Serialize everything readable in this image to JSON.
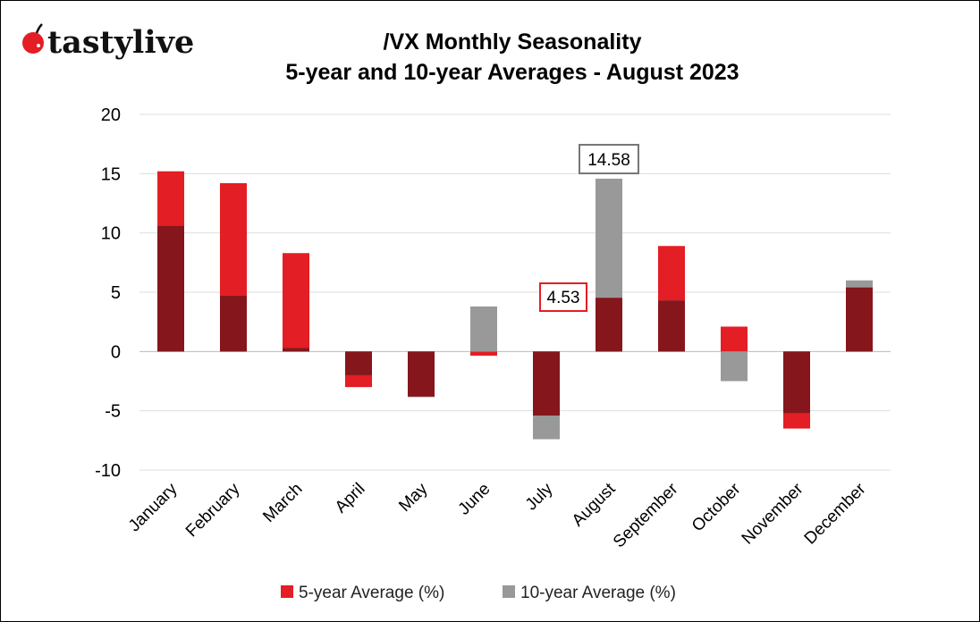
{
  "logo": {
    "text": "tastylive",
    "icon": "cherry-icon"
  },
  "chart_data": {
    "type": "bar",
    "title": "/VX Monthly Seasonality",
    "subtitle": "5-year and 10-year Averages - August 2023",
    "categories": [
      "January",
      "February",
      "March",
      "April",
      "May",
      "June",
      "July",
      "August",
      "September",
      "October",
      "November",
      "December"
    ],
    "series": [
      {
        "name": "5-year Average (%)",
        "color": "#e31e24",
        "values": [
          15.2,
          14.2,
          8.3,
          -3.0,
          -3.8,
          -0.35,
          -5.4,
          4.53,
          8.9,
          2.1,
          -6.5,
          5.4
        ]
      },
      {
        "name": "10-year Average (%)",
        "color": "#999999",
        "values": [
          10.6,
          4.7,
          0.3,
          -2.0,
          -3.85,
          3.8,
          -7.4,
          14.58,
          4.3,
          -2.5,
          -5.2,
          6.0
        ]
      }
    ],
    "overlap_color": "#85161c",
    "annotations": [
      {
        "text": "14.58",
        "category": "August",
        "series": "10-year Average (%)"
      },
      {
        "text": "4.53",
        "category": "August",
        "series": "5-year Average (%)"
      }
    ],
    "yticks": [
      "20",
      "15",
      "10",
      "5",
      "0",
      "-5",
      "-10"
    ],
    "ylim": [
      -10,
      20
    ],
    "grid": true,
    "legend": "bottom"
  }
}
